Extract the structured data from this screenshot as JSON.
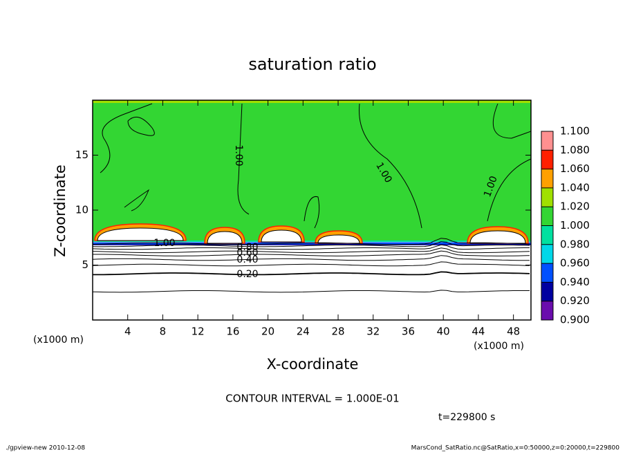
{
  "chart_data": {
    "type": "contour",
    "title": "saturation ratio",
    "xlabel": "X-coordinate",
    "ylabel": "Z-coordinate",
    "xunit": "(x1000 m)",
    "xlim": [
      0,
      50
    ],
    "xticks": [
      4,
      8,
      12,
      16,
      20,
      24,
      28,
      32,
      36,
      40,
      44,
      48
    ],
    "ylim": [
      0,
      20
    ],
    "yticks": [
      5,
      10,
      15
    ],
    "contour_levels": [
      0.1,
      0.2,
      0.3,
      0.4,
      0.5,
      0.6,
      0.7,
      0.8,
      0.9
    ],
    "contour_labels": [
      {
        "value": 0.2,
        "label": "0.20"
      },
      {
        "value": 0.4,
        "label": "0.40"
      },
      {
        "value": 0.6,
        "label": "0.60"
      },
      {
        "value": 0.8,
        "label": "0.80"
      },
      {
        "value": 1,
        "label": "1.00"
      },
      {
        "value": 1,
        "label": "1.00"
      },
      {
        "value": 1,
        "label": "1.00"
      },
      {
        "value": 1,
        "label": "1.00"
      }
    ],
    "colorbar_levels": [
      {
        "value": 0.9,
        "label": "0.900"
      },
      {
        "value": 0.92,
        "label": "0.920"
      },
      {
        "value": 0.94,
        "label": "0.940"
      },
      {
        "value": 0.96,
        "label": "0.960"
      },
      {
        "value": 0.98,
        "label": "0.980"
      },
      {
        "value": 1,
        "label": "1.000"
      },
      {
        "value": 1.02,
        "label": "1.020"
      },
      {
        "value": 1.04,
        "label": "1.040"
      },
      {
        "value": 1.06,
        "label": "1.060"
      },
      {
        "value": 1.08,
        "label": "1.080"
      },
      {
        "value": 1.1,
        "label": "1.100"
      }
    ],
    "colorbar_colors": [
      "#6a0dad",
      "#0000a0",
      "#0050ff",
      "#00d8e8",
      "#00e0a0",
      "#33d633",
      "#a0e000",
      "#ffa000",
      "#ff2000",
      "#ff9090"
    ],
    "field_color": "#33d633",
    "contour_interval": "CONTOUR INTERVAL = 1.000E-01",
    "time_label": "t=229800 s",
    "footer_left": "./gpview-new   2010-12-08",
    "footer_right": "MarsCond_SatRatio.nc@SatRatio,x=0:50000,z=0:20000,t=229800"
  }
}
